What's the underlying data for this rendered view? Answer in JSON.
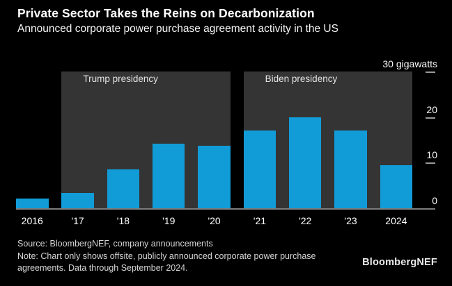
{
  "header": {
    "title": "Private Sector Takes the Reins on Decarbonization",
    "subtitle": "Announced corporate power purchase agreement activity in the US"
  },
  "chart_data": {
    "type": "bar",
    "title": "Private Sector Takes the Reins on Decarbonization",
    "subtitle": "Announced corporate power purchase agreement activity in the US",
    "ylabel": "gigawatts",
    "categories": [
      "2016",
      "'17",
      "'18",
      "'19",
      "'20",
      "'21",
      "'22",
      "'23",
      "2024"
    ],
    "values": [
      2.1,
      3.4,
      8.5,
      14.1,
      13.7,
      17,
      20,
      17.1,
      9.5
    ],
    "ylim": [
      0,
      30
    ],
    "yticks": [
      {
        "label": "30 gigawatts",
        "value": 30,
        "dash": true
      },
      {
        "label": "20",
        "value": 20,
        "dash": true
      },
      {
        "label": "10",
        "value": 10,
        "dash": true
      },
      {
        "label": "0",
        "value": 0,
        "dash": false
      }
    ],
    "bands": [
      {
        "label": "Trump presidency",
        "from_index": 1,
        "to_index": 4
      },
      {
        "label": "Biden presidency",
        "from_index": 5,
        "to_index": 8
      }
    ],
    "legend": "none",
    "grid": "off",
    "bar_color": "#119cd8",
    "band_color": "#343434",
    "background_color": "#000000"
  },
  "footer": {
    "lines": [
      "Source: BloombergNEF, company announcements",
      "Note: Chart only shows offsite, publicly announced corporate power purchase",
      "agreements. Data through September 2024."
    ],
    "brand": "BloombergNEF"
  }
}
